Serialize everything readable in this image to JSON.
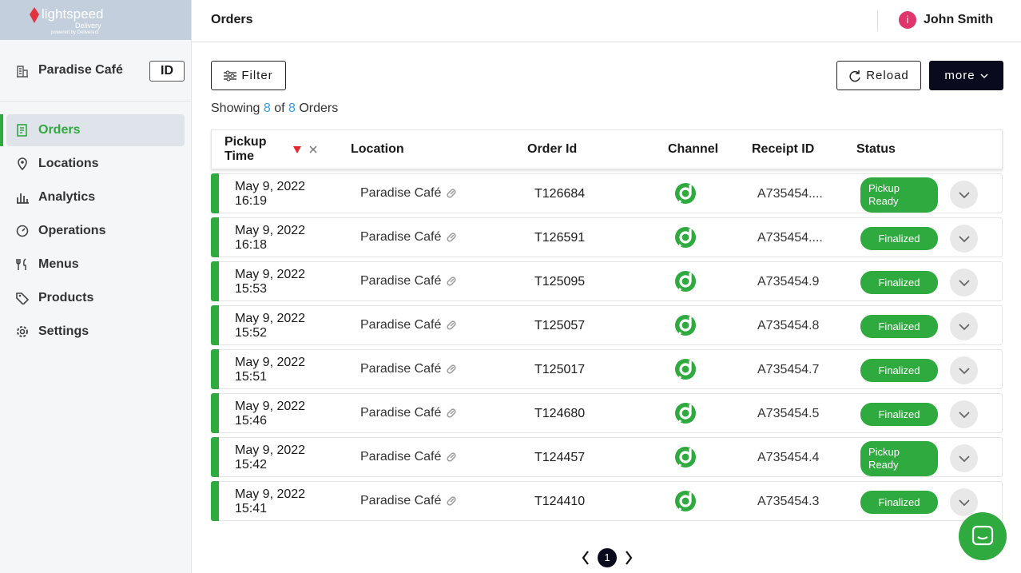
{
  "logo": {
    "brand": "lightspeed",
    "product": "Delivery",
    "tagline": "powered by Deliverect"
  },
  "sidebar": {
    "account": "Paradise Café",
    "account_badge": "ID",
    "nav": [
      "Orders",
      "Locations",
      "Analytics",
      "Operations",
      "Menus",
      "Products",
      "Settings"
    ],
    "active": 0
  },
  "header": {
    "title": "Orders",
    "user_initial": "i",
    "user_name": "John Smith"
  },
  "toolbar": {
    "filter": "Filter",
    "reload": "Reload",
    "more": "more"
  },
  "summary": {
    "prefix": "Showing",
    "shown": 8,
    "of": "of",
    "total": 8,
    "suffix": "Orders"
  },
  "table": {
    "columns": [
      "Pickup Time",
      "Location",
      "Order Id",
      "Channel",
      "Receipt ID",
      "Status"
    ],
    "rows": [
      {
        "date": "May 9, 2022",
        "time": "16:19",
        "location": "Paradise Café",
        "order_id": "T126684",
        "receipt_id": "A735454....",
        "status": "Pickup Ready"
      },
      {
        "date": "May 9, 2022",
        "time": "16:18",
        "location": "Paradise Café",
        "order_id": "T126591",
        "receipt_id": "A735454....",
        "status": "Finalized"
      },
      {
        "date": "May 9, 2022",
        "time": "15:53",
        "location": "Paradise Café",
        "order_id": "T125095",
        "receipt_id": "A735454.9",
        "status": "Finalized"
      },
      {
        "date": "May 9, 2022",
        "time": "15:52",
        "location": "Paradise Café",
        "order_id": "T125057",
        "receipt_id": "A735454.8",
        "status": "Finalized"
      },
      {
        "date": "May 9, 2022",
        "time": "15:51",
        "location": "Paradise Café",
        "order_id": "T125017",
        "receipt_id": "A735454.7",
        "status": "Finalized"
      },
      {
        "date": "May 9, 2022",
        "time": "15:46",
        "location": "Paradise Café",
        "order_id": "T124680",
        "receipt_id": "A735454.5",
        "status": "Finalized"
      },
      {
        "date": "May 9, 2022",
        "time": "15:42",
        "location": "Paradise Café",
        "order_id": "T124457",
        "receipt_id": "A735454.4",
        "status": "Pickup Ready"
      },
      {
        "date": "May 9, 2022",
        "time": "15:41",
        "location": "Paradise Café",
        "order_id": "T124410",
        "receipt_id": "A735454.3",
        "status": "Finalized"
      }
    ]
  },
  "pagination": {
    "page": 1
  }
}
